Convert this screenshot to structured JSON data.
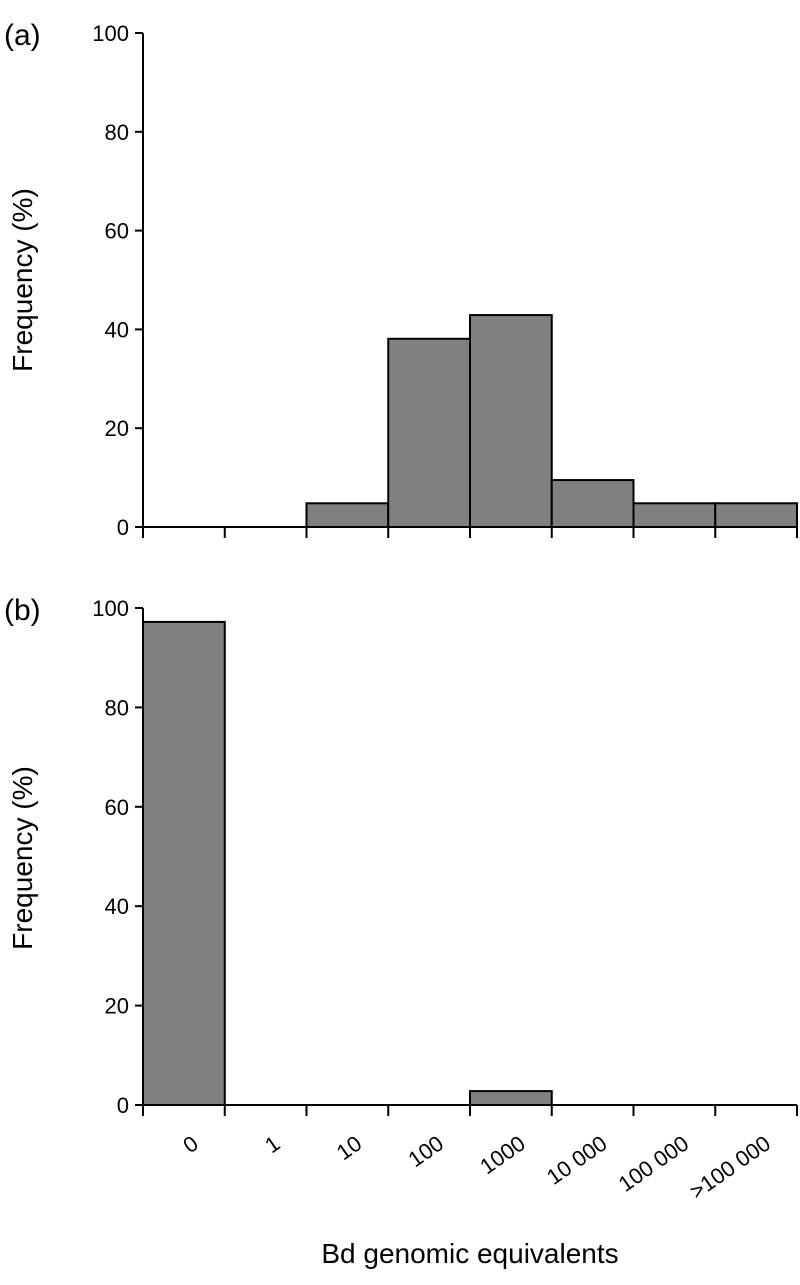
{
  "chart_data": [
    {
      "type": "bar",
      "panel_label": "(a)",
      "categories": [
        "0",
        "1",
        "10",
        "100",
        "1000",
        "10 000",
        "100 000",
        ">100 000"
      ],
      "values": [
        0,
        0,
        4.8,
        38.1,
        42.9,
        9.5,
        4.8,
        4.8
      ],
      "ylabel": "Frequency (%)",
      "xlabel": "",
      "ylim": [
        0,
        100
      ],
      "yticks": [
        0,
        20,
        40,
        60,
        80,
        100
      ],
      "bar_color": "#808080",
      "grid": false
    },
    {
      "type": "bar",
      "panel_label": "(b)",
      "categories": [
        "0",
        "1",
        "10",
        "100",
        "1000",
        "10 000",
        "100 000",
        ">100 000"
      ],
      "values": [
        97.2,
        0,
        0,
        0,
        2.8,
        0,
        0,
        0
      ],
      "ylabel": "Frequency (%)",
      "xlabel": "Bd genomic equivalents",
      "ylim": [
        0,
        100
      ],
      "yticks": [
        0,
        20,
        40,
        60,
        80,
        100
      ],
      "bar_color": "#808080",
      "grid": false
    }
  ]
}
